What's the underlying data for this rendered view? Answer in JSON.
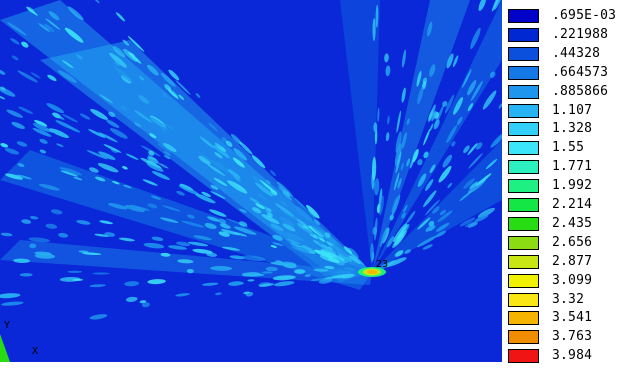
{
  "plot": {
    "background_color": "#0a28d8",
    "labels": {
      "node_label": "23",
      "axis_y": "Y",
      "axis_x": "X"
    }
  },
  "legend": {
    "items": [
      {
        "label": ".695E-03",
        "color": "#0000c8"
      },
      {
        "label": ".221988",
        "color": "#0028d2"
      },
      {
        "label": ".44328",
        "color": "#0a50dc"
      },
      {
        "label": ".664573",
        "color": "#1478e6"
      },
      {
        "label": ".885866",
        "color": "#1e96ee"
      },
      {
        "label": "1.107",
        "color": "#28b4f4"
      },
      {
        "label": "1.328",
        "color": "#32cff8"
      },
      {
        "label": "1.55",
        "color": "#3ce6fa"
      },
      {
        "label": "1.771",
        "color": "#2cf0c0"
      },
      {
        "label": "1.992",
        "color": "#1ef082"
      },
      {
        "label": "2.214",
        "color": "#14e646"
      },
      {
        "label": "2.435",
        "color": "#28dc14"
      },
      {
        "label": "2.656",
        "color": "#8cdc14"
      },
      {
        "label": "2.877",
        "color": "#c8e614"
      },
      {
        "label": "3.099",
        "color": "#f0f000"
      },
      {
        "label": "3.32",
        "color": "#fae614"
      },
      {
        "label": "3.541",
        "color": "#f5b400"
      },
      {
        "label": "3.763",
        "color": "#f08c00"
      },
      {
        "label": "3.984",
        "color": "#f01414"
      }
    ]
  }
}
